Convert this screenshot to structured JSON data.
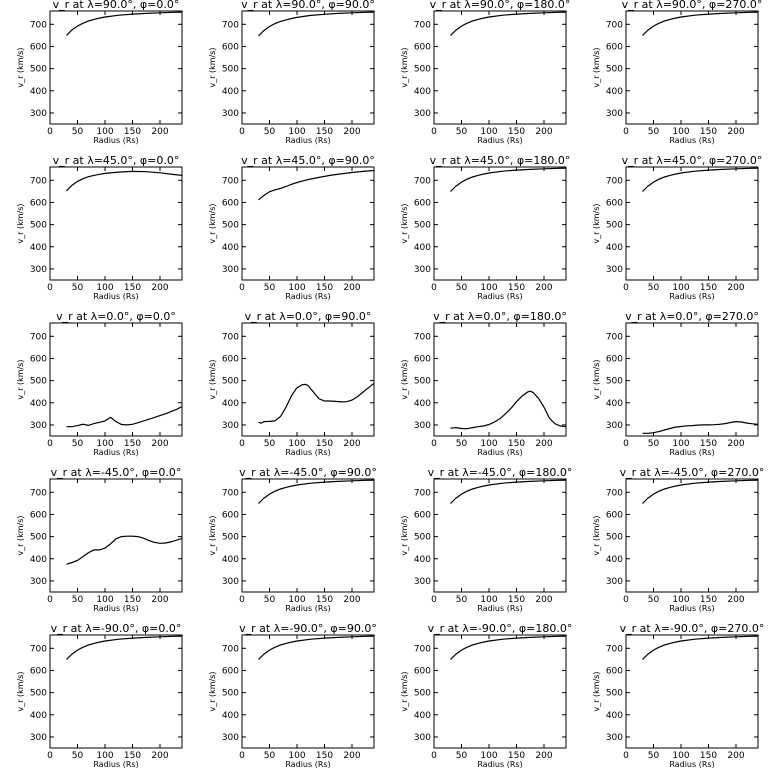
{
  "figure": {
    "xlabel": "Radius (Rs)",
    "ylabel": "v_r (km/s)",
    "xlim": [
      0,
      240
    ],
    "ylim": [
      250,
      760
    ],
    "xticks": [
      0,
      50,
      100,
      150,
      200
    ],
    "yticks": [
      300,
      400,
      500,
      600,
      700
    ]
  },
  "chart_data": [
    {
      "type": "line",
      "title": "v_r at λ=90.0°, φ=0.0°",
      "x": [
        30,
        40,
        50,
        60,
        70,
        80,
        90,
        100,
        125,
        150,
        175,
        200,
        225,
        240
      ],
      "y": [
        650,
        675,
        692,
        705,
        715,
        722,
        728,
        733,
        741,
        746,
        749,
        752,
        754,
        755
      ]
    },
    {
      "type": "line",
      "title": "v_r at λ=90.0°, φ=90.0°",
      "x": [
        30,
        40,
        50,
        60,
        70,
        80,
        90,
        100,
        125,
        150,
        175,
        200,
        225,
        240
      ],
      "y": [
        648,
        672,
        690,
        703,
        713,
        720,
        726,
        731,
        740,
        745,
        749,
        752,
        754,
        755
      ]
    },
    {
      "type": "line",
      "title": "v_r at λ=90.0°, φ=180.0°",
      "x": [
        30,
        40,
        50,
        60,
        70,
        80,
        90,
        100,
        125,
        150,
        175,
        200,
        225,
        240
      ],
      "y": [
        650,
        674,
        692,
        705,
        715,
        722,
        728,
        733,
        741,
        746,
        749,
        752,
        754,
        755
      ]
    },
    {
      "type": "line",
      "title": "v_r at λ=90.0°, φ=270.0°",
      "x": [
        30,
        40,
        50,
        60,
        70,
        80,
        90,
        100,
        125,
        150,
        175,
        200,
        225,
        240
      ],
      "y": [
        650,
        674,
        692,
        705,
        715,
        722,
        728,
        733,
        741,
        746,
        749,
        752,
        754,
        755
      ]
    },
    {
      "type": "line",
      "title": "v_r at λ=45.0°, φ=0.0°",
      "x": [
        30,
        40,
        50,
        60,
        70,
        80,
        90,
        100,
        125,
        150,
        175,
        200,
        225,
        240
      ],
      "y": [
        652,
        678,
        695,
        707,
        716,
        722,
        727,
        731,
        737,
        740,
        739,
        734,
        726,
        722
      ]
    },
    {
      "type": "line",
      "title": "v_r at λ=45.0°, φ=90.0°",
      "x": [
        30,
        40,
        50,
        60,
        70,
        80,
        90,
        100,
        120,
        140,
        160,
        180,
        200,
        220,
        240
      ],
      "y": [
        612,
        632,
        648,
        657,
        663,
        672,
        682,
        690,
        703,
        713,
        722,
        729,
        735,
        740,
        744
      ]
    },
    {
      "type": "line",
      "title": "v_r at λ=45.0°, φ=180.0°",
      "x": [
        30,
        40,
        50,
        60,
        70,
        80,
        90,
        100,
        125,
        150,
        175,
        200,
        225,
        240
      ],
      "y": [
        650,
        674,
        692,
        705,
        715,
        722,
        728,
        733,
        741,
        746,
        749,
        752,
        754,
        755
      ]
    },
    {
      "type": "line",
      "title": "v_r at λ=45.0°, φ=270.0°",
      "x": [
        30,
        40,
        50,
        60,
        70,
        80,
        90,
        100,
        125,
        150,
        175,
        200,
        225,
        240
      ],
      "y": [
        650,
        674,
        692,
        705,
        715,
        722,
        728,
        733,
        741,
        746,
        749,
        752,
        754,
        755
      ]
    },
    {
      "type": "line",
      "title": "v_r at λ=0.0°, φ=0.0°",
      "x": [
        30,
        40,
        50,
        60,
        70,
        80,
        90,
        100,
        110,
        120,
        130,
        140,
        150,
        160,
        170,
        180,
        190,
        200,
        210,
        220,
        230,
        240
      ],
      "y": [
        292,
        292,
        297,
        303,
        298,
        306,
        312,
        318,
        334,
        315,
        302,
        300,
        303,
        310,
        318,
        326,
        334,
        342,
        350,
        360,
        370,
        383
      ]
    },
    {
      "type": "line",
      "title": "v_r at λ=0.0°, φ=90.0°",
      "x": [
        30,
        35,
        40,
        50,
        60,
        70,
        80,
        90,
        100,
        110,
        115,
        120,
        130,
        140,
        150,
        160,
        170,
        180,
        190,
        200,
        210,
        220,
        230,
        240
      ],
      "y": [
        312,
        308,
        315,
        316,
        318,
        338,
        380,
        432,
        468,
        482,
        483,
        478,
        448,
        418,
        408,
        408,
        406,
        404,
        405,
        412,
        428,
        448,
        468,
        488
      ]
    },
    {
      "type": "line",
      "title": "v_r at λ=0.0°, φ=180.0°",
      "x": [
        30,
        40,
        50,
        60,
        70,
        80,
        90,
        100,
        110,
        120,
        130,
        140,
        150,
        160,
        170,
        175,
        180,
        190,
        200,
        210,
        220,
        230,
        240
      ],
      "y": [
        285,
        288,
        284,
        283,
        288,
        292,
        295,
        302,
        313,
        328,
        350,
        375,
        405,
        430,
        448,
        452,
        447,
        420,
        380,
        330,
        305,
        295,
        292
      ]
    },
    {
      "type": "line",
      "title": "v_r at λ=0.0°, φ=270.0°",
      "x": [
        30,
        40,
        50,
        60,
        70,
        80,
        90,
        100,
        110,
        120,
        130,
        140,
        150,
        160,
        170,
        180,
        190,
        200,
        210,
        220,
        230,
        240
      ],
      "y": [
        262,
        262,
        265,
        270,
        277,
        284,
        290,
        293,
        296,
        297,
        299,
        300,
        300,
        301,
        303,
        306,
        311,
        315,
        313,
        308,
        305,
        303
      ]
    },
    {
      "type": "line",
      "title": "v_r at λ=-45.0°, φ=0.0°",
      "x": [
        30,
        40,
        50,
        60,
        70,
        80,
        90,
        100,
        110,
        120,
        130,
        140,
        150,
        160,
        170,
        180,
        190,
        200,
        210,
        220,
        230,
        240
      ],
      "y": [
        375,
        383,
        392,
        410,
        428,
        440,
        440,
        448,
        467,
        490,
        500,
        502,
        502,
        500,
        493,
        482,
        474,
        470,
        471,
        476,
        484,
        492
      ]
    },
    {
      "type": "line",
      "title": "v_r at λ=-45.0°, φ=90.0°",
      "x": [
        30,
        40,
        50,
        60,
        70,
        80,
        90,
        100,
        125,
        150,
        175,
        200,
        225,
        240
      ],
      "y": [
        650,
        674,
        692,
        705,
        715,
        722,
        728,
        733,
        741,
        746,
        749,
        752,
        754,
        755
      ]
    },
    {
      "type": "line",
      "title": "v_r at λ=-45.0°, φ=180.0°",
      "x": [
        30,
        40,
        50,
        60,
        70,
        80,
        90,
        100,
        125,
        150,
        175,
        200,
        225,
        240
      ],
      "y": [
        650,
        674,
        692,
        705,
        715,
        722,
        728,
        733,
        741,
        746,
        749,
        752,
        754,
        755
      ]
    },
    {
      "type": "line",
      "title": "v_r at λ=-45.0°, φ=270.0°",
      "x": [
        30,
        40,
        50,
        60,
        70,
        80,
        90,
        100,
        125,
        150,
        175,
        200,
        225,
        240
      ],
      "y": [
        650,
        674,
        692,
        705,
        715,
        722,
        728,
        733,
        741,
        746,
        749,
        752,
        754,
        755
      ]
    },
    {
      "type": "line",
      "title": "v_r at λ=-90.0°, φ=0.0°",
      "x": [
        30,
        40,
        50,
        60,
        70,
        80,
        90,
        100,
        125,
        150,
        175,
        200,
        225,
        240
      ],
      "y": [
        650,
        674,
        692,
        705,
        715,
        722,
        728,
        733,
        741,
        746,
        749,
        752,
        754,
        755
      ]
    },
    {
      "type": "line",
      "title": "v_r at λ=-90.0°, φ=90.0°",
      "x": [
        30,
        40,
        50,
        60,
        70,
        80,
        90,
        100,
        125,
        150,
        175,
        200,
        225,
        240
      ],
      "y": [
        650,
        674,
        692,
        705,
        715,
        722,
        728,
        733,
        741,
        746,
        749,
        752,
        754,
        755
      ]
    },
    {
      "type": "line",
      "title": "v_r at λ=-90.0°, φ=180.0°",
      "x": [
        30,
        40,
        50,
        60,
        70,
        80,
        90,
        100,
        125,
        150,
        175,
        200,
        225,
        240
      ],
      "y": [
        650,
        674,
        692,
        705,
        715,
        722,
        728,
        733,
        741,
        746,
        749,
        752,
        754,
        755
      ]
    },
    {
      "type": "line",
      "title": "v_r at λ=-90.0°, φ=270.0°",
      "x": [
        30,
        40,
        50,
        60,
        70,
        80,
        90,
        100,
        125,
        150,
        175,
        200,
        225,
        240
      ],
      "y": [
        650,
        674,
        692,
        705,
        715,
        722,
        728,
        733,
        741,
        746,
        749,
        752,
        754,
        755
      ]
    }
  ]
}
